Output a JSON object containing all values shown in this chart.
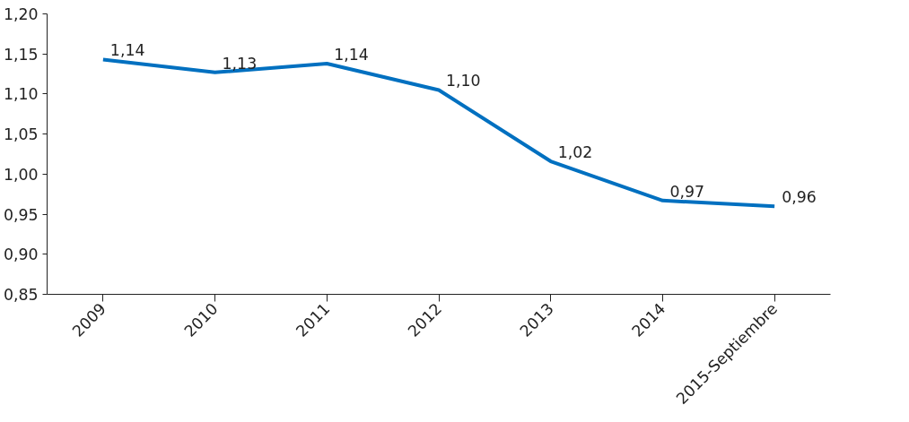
{
  "chart_data": {
    "type": "line",
    "categories": [
      "2009",
      "2010",
      "2011",
      "2012",
      "2013",
      "2014",
      "2015-Septiembre"
    ],
    "series": [
      {
        "color": "#0070c0",
        "values": [
          1.143,
          1.127,
          1.138,
          1.105,
          1.016,
          0.967,
          0.96
        ],
        "value_labels": [
          "1,14",
          "1,13",
          "1,14",
          "1,10",
          "1,02",
          "0,97",
          "0,96"
        ]
      }
    ],
    "ylim": [
      0.85,
      1.2
    ],
    "yticks": [
      {
        "value": 0.85,
        "label": "0,85"
      },
      {
        "value": 0.9,
        "label": "0,90"
      },
      {
        "value": 0.95,
        "label": "0,95"
      },
      {
        "value": 1.0,
        "label": "1,00"
      },
      {
        "value": 1.05,
        "label": "1,05"
      },
      {
        "value": 1.1,
        "label": "1,10"
      },
      {
        "value": 1.15,
        "label": "1,15"
      },
      {
        "value": 1.2,
        "label": "1,20"
      }
    ],
    "grid": false,
    "marker": "none",
    "line_style": "solid"
  }
}
